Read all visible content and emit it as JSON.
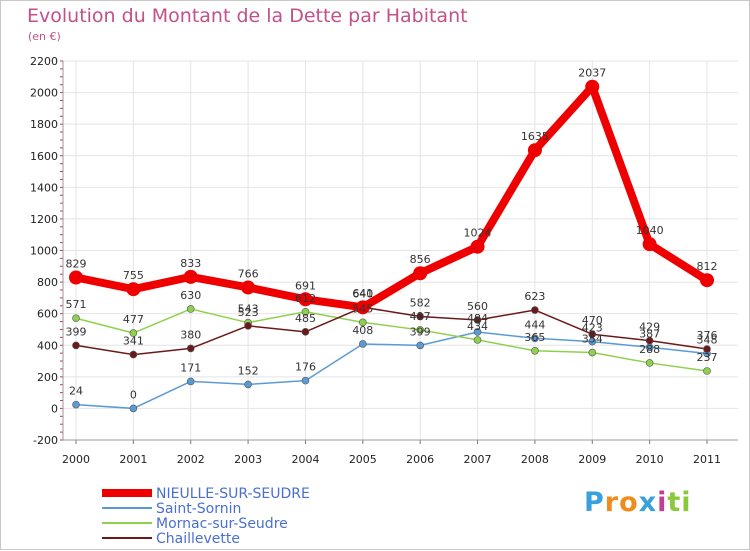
{
  "chart_data": {
    "type": "line",
    "title": "Evolution du Montant de la Dette par Habitant",
    "subtitle": "(en €)",
    "x": [
      "2000",
      "2001",
      "2002",
      "2003",
      "2004",
      "2005",
      "2006",
      "2007",
      "2008",
      "2009",
      "2010",
      "2011"
    ],
    "ylim": [
      -200,
      2200
    ],
    "yticks": [
      -200,
      0,
      200,
      400,
      600,
      800,
      1000,
      1200,
      1400,
      1600,
      1800,
      2000,
      2200
    ],
    "grid": true,
    "legend_position": "bottom-left",
    "series": [
      {
        "name": "NIEULLE-SUR-SEUDRE",
        "color": "#ee0000",
        "values": [
          829,
          755,
          833,
          766,
          691,
          640,
          856,
          1024,
          1635,
          2037,
          1040,
          812
        ],
        "labels": [
          "829",
          "755",
          "833",
          "766",
          "691",
          "640",
          "856",
          "1024",
          "1635",
          "2037",
          "1040",
          "812"
        ]
      },
      {
        "name": "Saint-Sornin",
        "color": "#5b9bd5",
        "values": [
          24,
          0,
          171,
          152,
          176,
          408,
          399,
          484,
          444,
          423,
          387,
          348
        ],
        "labels": [
          "24",
          "0",
          "171",
          "152",
          "176",
          "408",
          "399",
          "484",
          "444",
          "423",
          "387",
          "348"
        ]
      },
      {
        "name": "Mornac-sur-Seudre",
        "color": "#8fd14f",
        "values": [
          571,
          477,
          630,
          543,
          612,
          545,
          497,
          434,
          365,
          354,
          288,
          237
        ],
        "labels": [
          "571",
          "477",
          "630",
          "543",
          "612",
          "545",
          "497",
          "434",
          "365",
          "354",
          "288",
          "237"
        ]
      },
      {
        "name": "Chaillevette",
        "color": "#6b1a1a",
        "values": [
          399,
          341,
          380,
          523,
          485,
          641,
          582,
          560,
          623,
          470,
          429,
          376
        ],
        "labels": [
          "399",
          "341",
          "380",
          "523",
          "485",
          "641",
          "582",
          "560",
          "623",
          "470",
          "429",
          "376"
        ]
      }
    ]
  },
  "logo": {
    "letters": [
      "P",
      "r",
      "o",
      "x",
      "i",
      "t",
      "i"
    ],
    "colors": [
      "#3aa0dc",
      "#f08c1e",
      "#f08c1e",
      "#3aa0dc",
      "#c83c96",
      "#8cc83c",
      "#8cc83c"
    ]
  }
}
